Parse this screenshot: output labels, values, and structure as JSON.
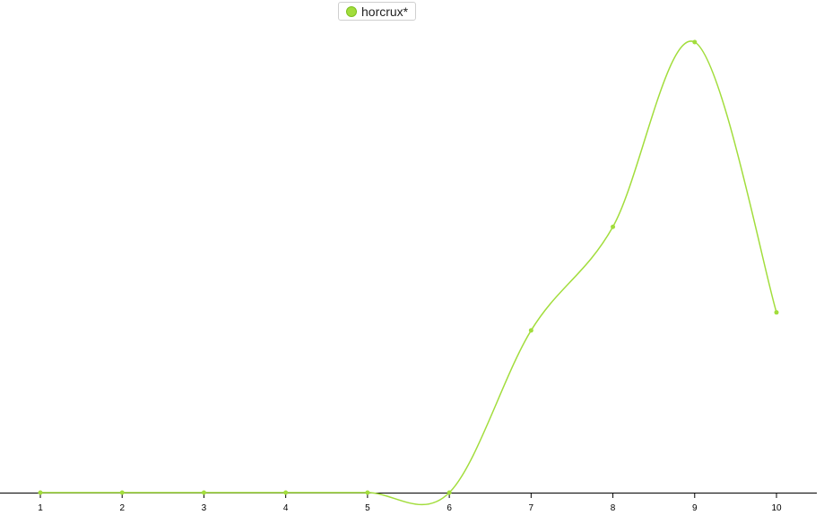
{
  "chart_data": {
    "type": "line",
    "smooth": true,
    "x": [
      1,
      2,
      3,
      4,
      5,
      6,
      7,
      8,
      9,
      10
    ],
    "categories": [
      "1",
      "2",
      "3",
      "4",
      "5",
      "6",
      "7",
      "8",
      "9",
      "10"
    ],
    "series": [
      {
        "name": "horcrux*",
        "values": [
          0,
          0,
          0,
          0,
          0,
          0,
          36,
          59,
          100,
          40
        ],
        "color": "#a2dd3c"
      }
    ],
    "title": "",
    "xlabel": "",
    "ylabel": "",
    "ylim": [
      0,
      100
    ],
    "grid": false,
    "legend_position": "top-center"
  }
}
